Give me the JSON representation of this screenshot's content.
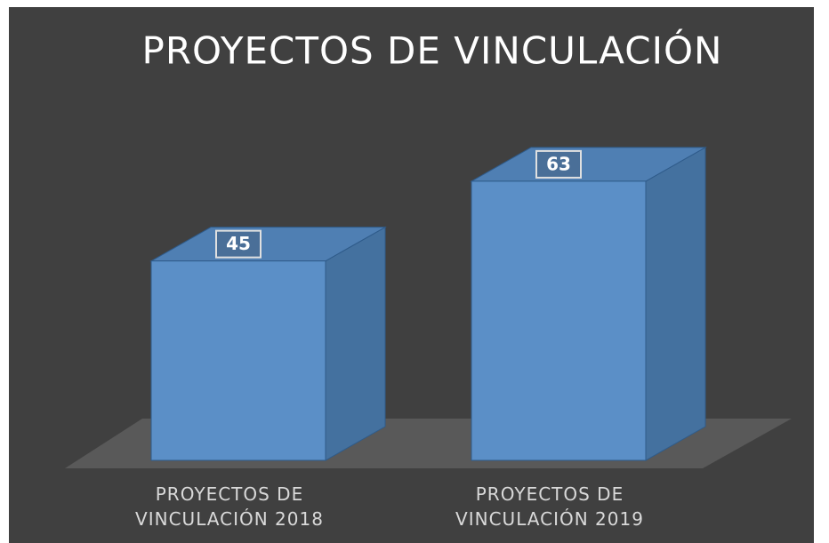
{
  "chart_data": {
    "type": "bar3d",
    "title": "PROYECTOS DE VINCULACIÓN",
    "categories": [
      "PROYECTOS DE VINCULACIÓN 2018",
      "PROYECTOS DE VINCULACIÓN 2019"
    ],
    "values": [
      45,
      63
    ],
    "color": "#5b8fc7",
    "ylim": [
      0,
      70
    ]
  }
}
